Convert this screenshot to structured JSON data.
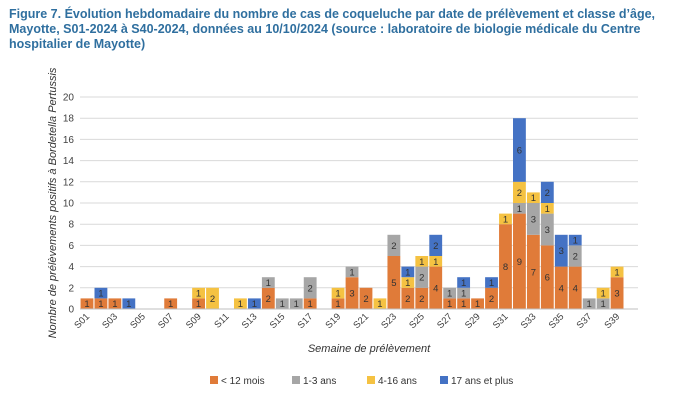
{
  "header": {
    "title": "Figure 7. Évolution hebdomadaire du nombre de cas de coqueluche par date de prélèvement et classe d’âge, Mayotte, S01-2024 à S40-2024, données au 10/10/2024 (source : laboratoire de biologie médicale du Centre hospitalier de Mayotte)"
  },
  "colors": {
    "lt12": "#e07b39",
    "m1_3": "#a6a6a6",
    "y4_16": "#f5c242",
    "y17p": "#4472c4",
    "title": "#2f6f9f",
    "grid": "#d9d9d9"
  },
  "chart_data": {
    "type": "bar",
    "stacked": true,
    "xlabel": "Semaine de prélèvement",
    "ylabel": "Nombre de prélèvements positifs à Bordetella Pertussis",
    "ylim": [
      0,
      20
    ],
    "yticks": [
      0,
      2,
      4,
      6,
      8,
      10,
      12,
      14,
      16,
      18,
      20
    ],
    "grid": true,
    "legend_position": "bottom",
    "categories": [
      "S01",
      "S02",
      "S03",
      "S04",
      "S05",
      "S06",
      "S07",
      "S08",
      "S09",
      "S10",
      "S11",
      "S12",
      "S13",
      "S14",
      "S15",
      "S16",
      "S17",
      "S18",
      "S19",
      "S20",
      "S21",
      "S22",
      "S23",
      "S24",
      "S25",
      "S26",
      "S27",
      "S28",
      "S29",
      "S30",
      "S31",
      "S32",
      "S33",
      "S34",
      "S35",
      "S36",
      "S37",
      "S38",
      "S39",
      "S40"
    ],
    "x_tick_labels": [
      "S01",
      "S03",
      "S05",
      "S07",
      "S09",
      "S11",
      "S13",
      "S15",
      "S17",
      "S19",
      "S21",
      "S23",
      "S25",
      "S27",
      "S29",
      "S31",
      "S33",
      "S35",
      "S37",
      "S39"
    ],
    "series": [
      {
        "name": "< 12 mois",
        "color": "#e07b39",
        "values": [
          1,
          1,
          1,
          0,
          0,
          0,
          1,
          0,
          1,
          0,
          0,
          0,
          0,
          2,
          0,
          0,
          1,
          0,
          1,
          3,
          2,
          0,
          5,
          2,
          2,
          4,
          1,
          1,
          1,
          2,
          8,
          9,
          7,
          6,
          4,
          4,
          0,
          0,
          3,
          0
        ]
      },
      {
        "name": "1-3 ans",
        "color": "#a6a6a6",
        "values": [
          0,
          0,
          0,
          0,
          0,
          0,
          0,
          0,
          0,
          0,
          0,
          0,
          0,
          1,
          1,
          1,
          2,
          0,
          0,
          1,
          0,
          0,
          2,
          0,
          2,
          0,
          1,
          1,
          0,
          0,
          0,
          1,
          3,
          3,
          0,
          2,
          1,
          1,
          0,
          0
        ]
      },
      {
        "name": "4-16 ans",
        "color": "#f5c242",
        "values": [
          0,
          0,
          0,
          0,
          0,
          0,
          0,
          0,
          1,
          2,
          0,
          1,
          0,
          0,
          0,
          0,
          0,
          0,
          1,
          0,
          0,
          1,
          0,
          1,
          1,
          1,
          0,
          0,
          0,
          0,
          1,
          2,
          1,
          1,
          0,
          0,
          0,
          1,
          1,
          0
        ]
      },
      {
        "name": "17 ans et plus",
        "color": "#4472c4",
        "values": [
          0,
          1,
          0,
          1,
          0,
          0,
          0,
          0,
          0,
          0,
          0,
          0,
          1,
          0,
          0,
          0,
          0,
          0,
          0,
          0,
          0,
          0,
          0,
          1,
          0,
          2,
          0,
          1,
          0,
          1,
          0,
          6,
          0,
          2,
          3,
          1,
          0,
          0,
          0,
          0
        ]
      }
    ]
  }
}
